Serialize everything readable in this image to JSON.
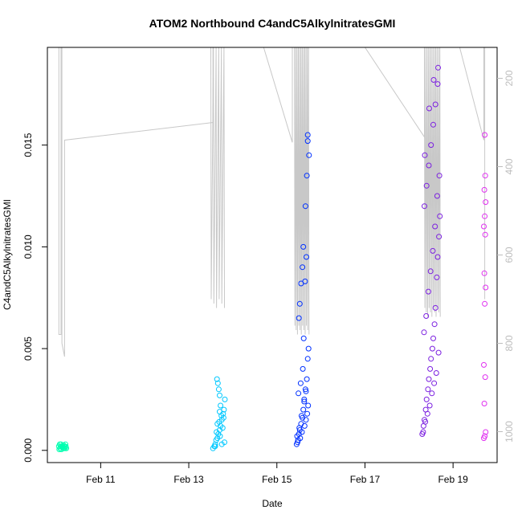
{
  "chart_data": {
    "type": "scatter",
    "title": "ATOM2 Northbound C4andC5AlkylnitratesGMI",
    "xlabel": "Date",
    "ylabel": "C4andC5AlkylnitratesGMI",
    "x_ticks": [
      "Feb 11",
      "Feb 13",
      "Feb 15",
      "Feb 17",
      "Feb 19"
    ],
    "y_ticks": [
      "0.000",
      "0.005",
      "0.010",
      "0.015"
    ],
    "y2_ticks": [
      "200",
      "400",
      "600",
      "800",
      "1000"
    ],
    "xlim": [
      "2017-02-09 19:00",
      "2017-02-20 00:00"
    ],
    "ylim": [
      -0.0006,
      0.0198
    ],
    "y2lim": [
      1070,
      130
    ],
    "y2_reversed": true,
    "grid": false,
    "colors": {
      "flight1": "#00ffb0",
      "flight2": "#00c8ff",
      "flight3": "#0030ff",
      "flight4": "#7b1fe0",
      "flight5": "#e030f0",
      "pressure_line": "#c8c8c8",
      "frame": "#000000"
    },
    "series": [
      {
        "color": "#00ffb0",
        "x_days": [
          10.05,
          10.08,
          10.1,
          10.12,
          10.15,
          10.18,
          10.2,
          10.22,
          10.06,
          10.09,
          10.13,
          10.16,
          10.19,
          10.07,
          10.11,
          10.14,
          10.17,
          10.21
        ],
        "y": [
          0.0002,
          0.0001,
          0.0003,
          0.0002,
          0.0001,
          0.0002,
          0.0003,
          0.0001,
          5e-05,
          0.0002,
          0.00015,
          0.00025,
          0.0001,
          0.0003,
          5e-05,
          0.0002,
          0.00012,
          0.00018
        ]
      },
      {
        "color": "#00c8ff",
        "x_days": [
          13.55,
          13.58,
          13.6,
          13.62,
          13.65,
          13.67,
          13.7,
          13.72,
          13.75,
          13.78,
          13.8,
          13.82,
          13.64,
          13.66,
          13.68,
          13.7,
          13.72,
          13.74,
          13.63,
          13.69,
          13.71,
          13.77,
          13.79,
          13.81,
          13.6,
          13.65,
          13.7,
          13.75
        ],
        "y": [
          0.0001,
          0.0002,
          0.0003,
          0.0005,
          0.0006,
          0.0008,
          0.001,
          0.0012,
          0.0015,
          0.0018,
          0.002,
          0.0025,
          0.0035,
          0.0033,
          0.003,
          0.0027,
          0.0022,
          0.0017,
          0.0009,
          0.0014,
          0.0007,
          0.0011,
          0.0016,
          0.0004,
          0.0002,
          0.0013,
          0.0019,
          0.0003
        ]
      },
      {
        "color": "#0030ff",
        "x_days": [
          15.45,
          15.48,
          15.5,
          15.52,
          15.55,
          15.58,
          15.6,
          15.62,
          15.65,
          15.68,
          15.7,
          15.72,
          15.5,
          15.52,
          15.55,
          15.58,
          15.6,
          15.65,
          15.68,
          15.7,
          15.47,
          15.53,
          15.57,
          15.63,
          15.66,
          15.69,
          15.71,
          15.49,
          15.54,
          15.59,
          15.61,
          15.64,
          15.67,
          15.46,
          15.51,
          15.56,
          15.62,
          15.66,
          15.7,
          15.73
        ],
        "y": [
          0.0003,
          0.0005,
          0.0008,
          0.001,
          0.0013,
          0.0016,
          0.002,
          0.0025,
          0.003,
          0.0035,
          0.0045,
          0.005,
          0.0065,
          0.0072,
          0.0082,
          0.009,
          0.01,
          0.012,
          0.0135,
          0.0155,
          0.0004,
          0.0006,
          0.0009,
          0.0012,
          0.0015,
          0.0018,
          0.0022,
          0.0028,
          0.0033,
          0.004,
          0.0055,
          0.0083,
          0.0095,
          0.0007,
          0.0011,
          0.0017,
          0.0024,
          0.0029,
          0.0152,
          0.0145
        ]
      },
      {
        "color": "#7b1fe0",
        "x_days": [
          18.3,
          18.33,
          18.35,
          18.38,
          18.4,
          18.43,
          18.45,
          18.48,
          18.5,
          18.53,
          18.55,
          18.58,
          18.6,
          18.63,
          18.65,
          18.68,
          18.7,
          18.35,
          18.4,
          18.45,
          18.5,
          18.55,
          18.6,
          18.65,
          18.32,
          18.37,
          18.42,
          18.47,
          18.52,
          18.57,
          18.62,
          18.67,
          18.34,
          18.39,
          18.44,
          18.49,
          18.54,
          18.59,
          18.64,
          18.69,
          18.36,
          18.46,
          18.56,
          18.66
        ],
        "y": [
          0.0008,
          0.0012,
          0.0015,
          0.002,
          0.0025,
          0.003,
          0.0035,
          0.004,
          0.0045,
          0.005,
          0.0055,
          0.0062,
          0.007,
          0.0085,
          0.0095,
          0.0105,
          0.0115,
          0.012,
          0.013,
          0.014,
          0.015,
          0.016,
          0.017,
          0.018,
          0.0009,
          0.0014,
          0.0018,
          0.0022,
          0.0028,
          0.0033,
          0.0038,
          0.0048,
          0.0058,
          0.0066,
          0.0078,
          0.0088,
          0.0098,
          0.011,
          0.0125,
          0.0135,
          0.0145,
          0.0168,
          0.0182,
          0.0188
        ]
      },
      {
        "color": "#e030f0",
        "x_days": [
          19.7,
          19.72,
          19.74,
          19.71,
          19.73,
          19.7,
          19.72,
          19.74,
          19.71,
          19.73,
          19.7,
          19.72,
          19.74,
          19.71,
          19.73,
          19.72
        ],
        "y": [
          0.0006,
          0.0007,
          0.0009,
          0.0023,
          0.0036,
          0.0042,
          0.0072,
          0.008,
          0.0087,
          0.0106,
          0.011,
          0.0115,
          0.0122,
          0.0128,
          0.0135,
          0.0155
        ]
      }
    ]
  }
}
